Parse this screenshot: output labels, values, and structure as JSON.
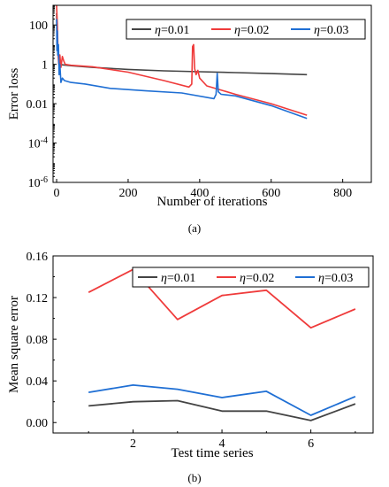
{
  "chart_data": [
    {
      "type": "line",
      "caption": "(a)",
      "xlabel": "Number of iterations",
      "ylabel": "Error loss",
      "xlim": [
        -10,
        880
      ],
      "ylim_log10": [
        -6,
        3
      ],
      "yscale": "log",
      "x_ticks": [
        0,
        200,
        400,
        600,
        800
      ],
      "y_ticks": [
        {
          "exp": 2,
          "label": "100"
        },
        {
          "exp": 0,
          "label": "1"
        },
        {
          "exp": -2,
          "label": "0.01"
        },
        {
          "exp": -4,
          "label": "10",
          "sup": "-4"
        },
        {
          "exp": -6,
          "label": "10",
          "sup": "-6"
        }
      ],
      "legend_position": "top-right",
      "series": [
        {
          "name": "η=0.01",
          "color": "#444444",
          "points": [
            [
              0,
              400
            ],
            [
              3,
              5
            ],
            [
              8,
              1.3
            ],
            [
              15,
              0.95
            ],
            [
              40,
              0.85
            ],
            [
              100,
              0.7
            ],
            [
              200,
              0.55
            ],
            [
              300,
              0.47
            ],
            [
              400,
              0.42
            ],
            [
              500,
              0.38
            ],
            [
              600,
              0.34
            ],
            [
              700,
              0.3
            ]
          ]
        },
        {
          "name": "η=0.02",
          "color": "#ef3b3b",
          "points": [
            [
              0,
              1000
            ],
            [
              2,
              100
            ],
            [
              4,
              3
            ],
            [
              6,
              1
            ],
            [
              9,
              3
            ],
            [
              12,
              0.7
            ],
            [
              16,
              2.5
            ],
            [
              20,
              1.5
            ],
            [
              24,
              1
            ],
            [
              40,
              0.9
            ],
            [
              100,
              0.75
            ],
            [
              200,
              0.4
            ],
            [
              300,
              0.15
            ],
            [
              370,
              0.07
            ],
            [
              378,
              0.1
            ],
            [
              380,
              8
            ],
            [
              383,
              10
            ],
            [
              386,
              0.6
            ],
            [
              390,
              0.3
            ],
            [
              395,
              0.5
            ],
            [
              400,
              0.2
            ],
            [
              420,
              0.08
            ],
            [
              500,
              0.03
            ],
            [
              600,
              0.01
            ],
            [
              700,
              0.0026
            ]
          ]
        },
        {
          "name": "η=0.03",
          "color": "#1f6fd4",
          "points": [
            [
              0,
              200
            ],
            [
              1,
              5
            ],
            [
              2,
              50
            ],
            [
              3,
              3
            ],
            [
              5,
              10
            ],
            [
              7,
              0.3
            ],
            [
              9,
              1
            ],
            [
              12,
              0.12
            ],
            [
              16,
              0.2
            ],
            [
              22,
              0.15
            ],
            [
              40,
              0.12
            ],
            [
              80,
              0.1
            ],
            [
              150,
              0.06
            ],
            [
              250,
              0.045
            ],
            [
              350,
              0.035
            ],
            [
              440,
              0.018
            ],
            [
              446,
              0.03
            ],
            [
              449,
              0.35
            ],
            [
              452,
              0.04
            ],
            [
              460,
              0.03
            ],
            [
              500,
              0.025
            ],
            [
              600,
              0.008
            ],
            [
              700,
              0.0018
            ]
          ]
        }
      ]
    },
    {
      "type": "line",
      "caption": "(b)",
      "xlabel": "Test time series",
      "ylabel": "Mean square error",
      "xlim": [
        0.2,
        7.4
      ],
      "ylim": [
        -0.01,
        0.16
      ],
      "x_ticks": [
        2,
        4,
        6
      ],
      "y_ticks": [
        0.0,
        0.04,
        0.08,
        0.12,
        0.16
      ],
      "y_tick_labels": [
        "0.00",
        "0.04",
        "0.08",
        "0.12",
        "0.16"
      ],
      "legend_position": "top-right",
      "x": [
        1,
        2,
        3,
        4,
        5,
        6,
        7
      ],
      "series": [
        {
          "name": "η=0.01",
          "color": "#444444",
          "values": [
            0.016,
            0.02,
            0.021,
            0.011,
            0.011,
            0.002,
            0.018
          ]
        },
        {
          "name": "η=0.02",
          "color": "#ef3b3b",
          "values": [
            0.125,
            0.147,
            0.099,
            0.122,
            0.127,
            0.091,
            0.109
          ]
        },
        {
          "name": "η=0.03",
          "color": "#1f6fd4",
          "values": [
            0.029,
            0.036,
            0.032,
            0.024,
            0.03,
            0.007,
            0.025
          ]
        }
      ]
    }
  ]
}
